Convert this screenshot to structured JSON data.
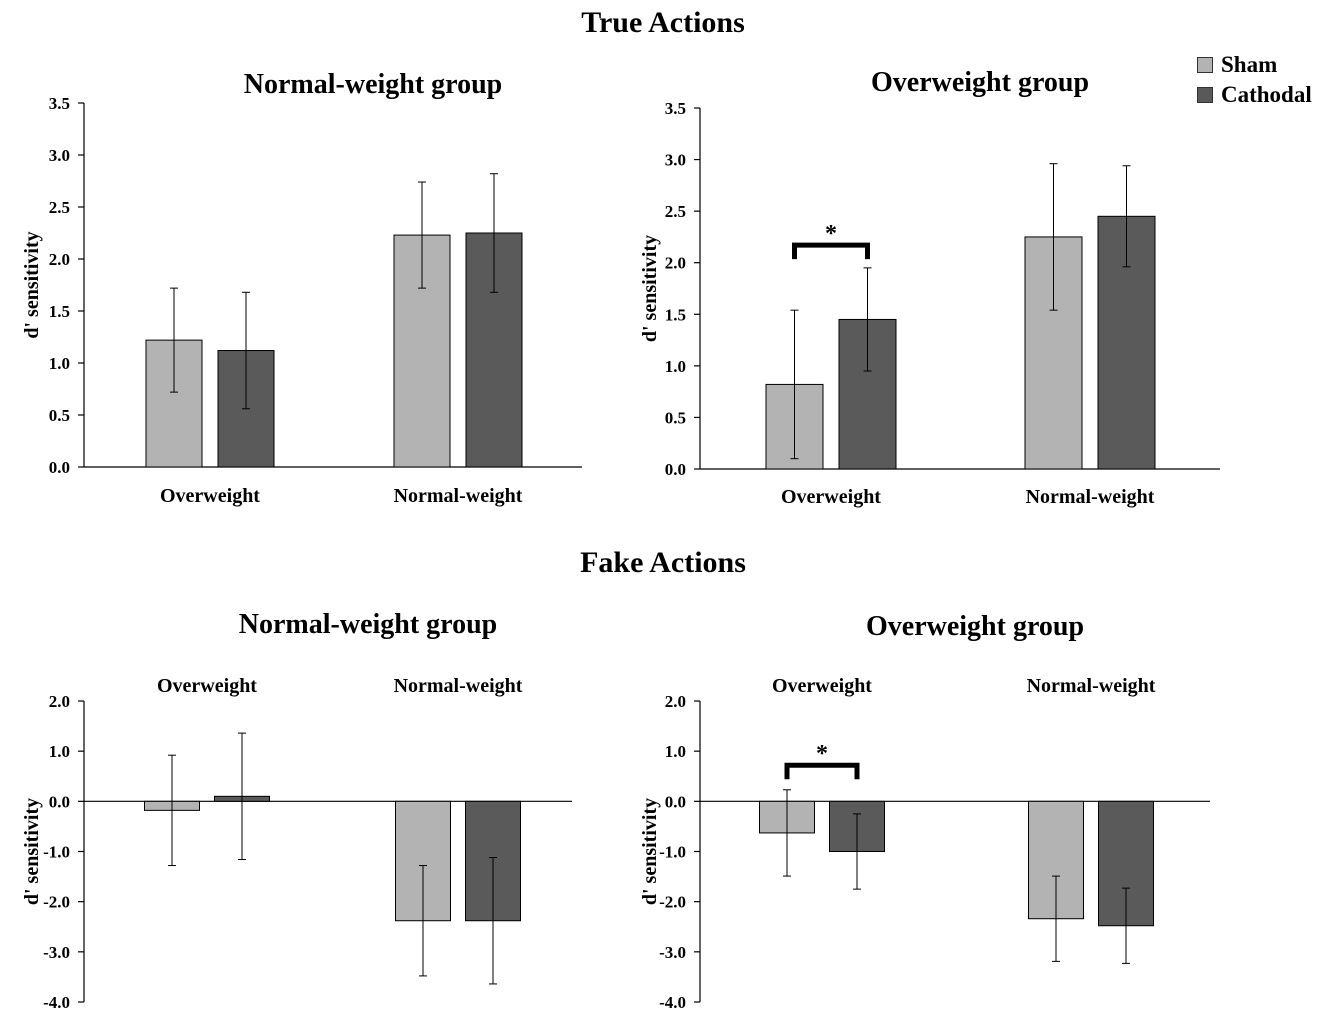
{
  "figure": {
    "title_true": "True Actions",
    "title_fake": "Fake Actions"
  },
  "legend": {
    "items": [
      {
        "label": "Sham",
        "color": "#b3b3b3"
      },
      {
        "label": "Cathodal",
        "color": "#595959"
      }
    ]
  },
  "chart_data": [
    {
      "type": "bar",
      "section": "True Actions",
      "title": "Normal-weight group",
      "ylabel": "d' sensitivity",
      "categories": [
        "Overweight",
        "Normal-weight"
      ],
      "ylim": [
        0,
        3.5
      ],
      "yticks": [
        "0.0",
        "0.5",
        "1.0",
        "1.5",
        "2.0",
        "2.5",
        "3.0",
        "3.5"
      ],
      "series": [
        {
          "name": "Sham",
          "values": [
            1.22,
            2.23
          ],
          "errors": [
            0.5,
            0.51
          ]
        },
        {
          "name": "Cathodal",
          "values": [
            1.12,
            2.25
          ],
          "errors": [
            0.56,
            0.57
          ]
        }
      ],
      "significance": []
    },
    {
      "type": "bar",
      "section": "True Actions",
      "title": "Overweight group",
      "ylabel": "d' sensitivity",
      "categories": [
        "Overweight",
        "Normal-weight"
      ],
      "ylim": [
        0,
        3.5
      ],
      "yticks": [
        "0.0",
        "0.5",
        "1.0",
        "1.5",
        "2.0",
        "2.5",
        "3.0",
        "3.5"
      ],
      "series": [
        {
          "name": "Sham",
          "values": [
            0.82,
            2.25
          ],
          "errors": [
            0.72,
            0.71
          ]
        },
        {
          "name": "Cathodal",
          "values": [
            1.45,
            2.45
          ],
          "errors": [
            0.5,
            0.49
          ]
        }
      ],
      "significance": [
        {
          "category": 0,
          "label": "*"
        }
      ]
    },
    {
      "type": "bar",
      "section": "Fake Actions",
      "title": "Normal-weight group",
      "ylabel": "d' sensitivity",
      "categories": [
        "Overweight",
        "Normal-weight"
      ],
      "ylim": [
        -4.0,
        2.0
      ],
      "yticks": [
        "-4.0",
        "-3.0",
        "-2.0",
        "-1.0",
        "0.0",
        "1.0",
        "2.0"
      ],
      "series": [
        {
          "name": "Sham",
          "values": [
            -0.18,
            -2.38
          ],
          "errors": [
            1.1,
            1.1
          ]
        },
        {
          "name": "Cathodal",
          "values": [
            0.1,
            -2.38
          ],
          "errors": [
            1.26,
            1.26
          ]
        }
      ],
      "significance": []
    },
    {
      "type": "bar",
      "section": "Fake Actions",
      "title": "Overweight group",
      "ylabel": "d' sensitivity",
      "categories": [
        "Overweight",
        "Normal-weight"
      ],
      "ylim": [
        -4.0,
        2.0
      ],
      "yticks": [
        "-4.0",
        "-3.0",
        "-2.0",
        "-1.0",
        "0.0",
        "1.0",
        "2.0"
      ],
      "series": [
        {
          "name": "Sham",
          "values": [
            -0.63,
            -2.34
          ],
          "errors": [
            0.86,
            0.85
          ]
        },
        {
          "name": "Cathodal",
          "values": [
            -1.0,
            -2.48
          ],
          "errors": [
            0.75,
            0.75
          ]
        }
      ],
      "significance": [
        {
          "category": 0,
          "label": "*"
        }
      ]
    }
  ]
}
